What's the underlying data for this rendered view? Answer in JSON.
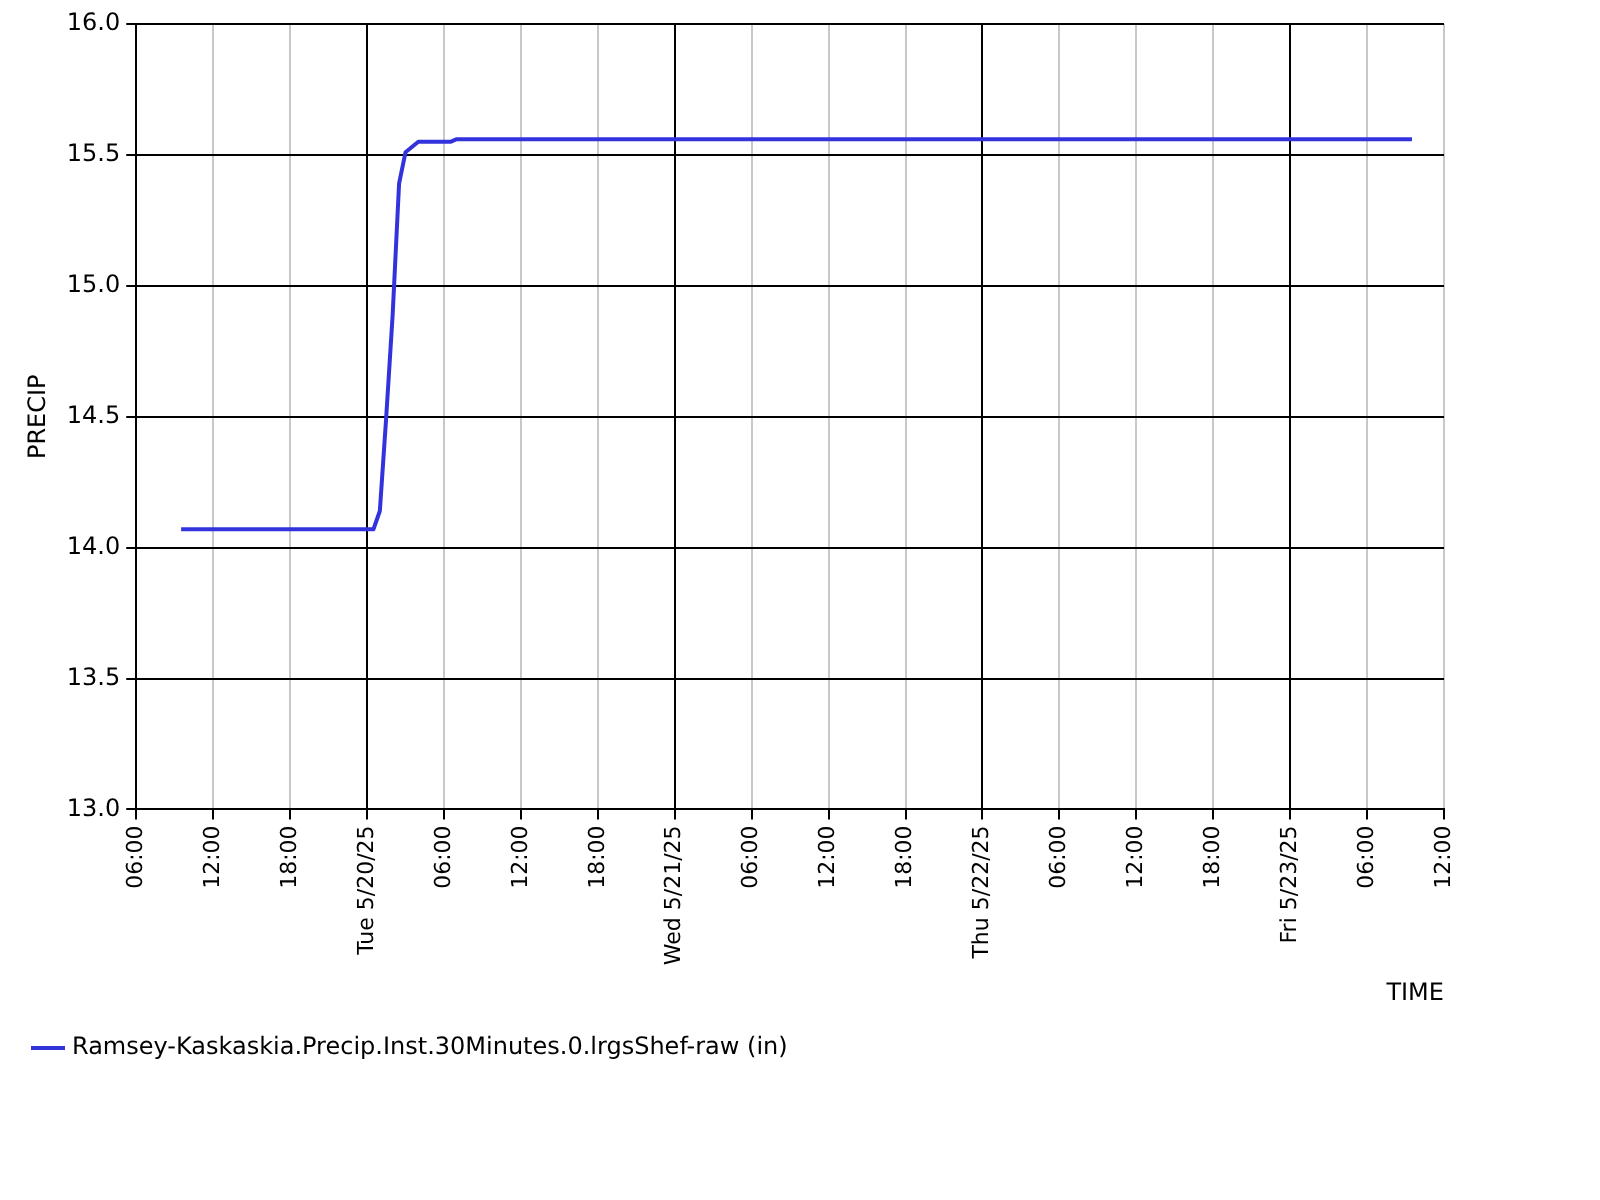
{
  "chart_data": {
    "type": "line",
    "xlabel": "TIME",
    "ylabel": "PRECIP",
    "x": [
      "--05-19T09:30",
      "--05-20T00:00",
      "--05-20T00:30",
      "--05-20T01:00",
      "--05-20T01:30",
      "--05-20T02:00",
      "--05-20T02:30",
      "--05-20T03:00",
      "--05-20T04:00",
      "--05-20T06:30",
      "--05-20T07:00",
      "--05-23T09:30"
    ],
    "series": [
      {
        "name": "Ramsey-Kaskaskia.Precip.Inst.30Minutes.0.lrgsShef-raw (in)",
        "color": "#3333dd",
        "values": [
          14.07,
          14.07,
          14.07,
          14.14,
          14.5,
          14.89,
          15.39,
          15.51,
          15.55,
          15.55,
          15.56,
          15.56
        ]
      }
    ],
    "xlim": [
      "--05-19T06:00",
      "--05-23T12:00"
    ],
    "xticks": [
      {
        "value": "--05-19T06:00",
        "label": "06:00"
      },
      {
        "value": "--05-19T12:00",
        "label": "12:00"
      },
      {
        "value": "--05-19T18:00",
        "label": "18:00"
      },
      {
        "value": "--05-20T00:00",
        "label": "Tue 5/20/25"
      },
      {
        "value": "--05-20T06:00",
        "label": "06:00"
      },
      {
        "value": "--05-20T12:00",
        "label": "12:00"
      },
      {
        "value": "--05-20T18:00",
        "label": "18:00"
      },
      {
        "value": "--05-21T00:00",
        "label": "Wed 5/21/25"
      },
      {
        "value": "--05-21T06:00",
        "label": "06:00"
      },
      {
        "value": "--05-21T12:00",
        "label": "12:00"
      },
      {
        "value": "--05-21T18:00",
        "label": "18:00"
      },
      {
        "value": "--05-22T00:00",
        "label": "Thu 5/22/25"
      },
      {
        "value": "--05-22T06:00",
        "label": "06:00"
      },
      {
        "value": "--05-22T12:00",
        "label": "12:00"
      },
      {
        "value": "--05-22T18:00",
        "label": "18:00"
      },
      {
        "value": "--05-23T00:00",
        "label": "Fri 5/23/25"
      },
      {
        "value": "--05-23T06:00",
        "label": "06:00"
      },
      {
        "value": "--05-23T12:00",
        "label": "12:00"
      }
    ],
    "ylim": [
      13,
      16
    ],
    "yticks": [
      {
        "value": 13,
        "label": "13.0"
      },
      {
        "value": 13.5,
        "label": "13.5"
      },
      {
        "value": 14,
        "label": "14.0"
      },
      {
        "value": 14.5,
        "label": "14.5"
      },
      {
        "value": 15,
        "label": "15.0"
      },
      {
        "value": 15.5,
        "label": "15.5"
      },
      {
        "value": 16,
        "label": "16.0"
      }
    ],
    "grid": true,
    "legend": "bottom",
    "marker": "none",
    "line_style": "solid"
  }
}
